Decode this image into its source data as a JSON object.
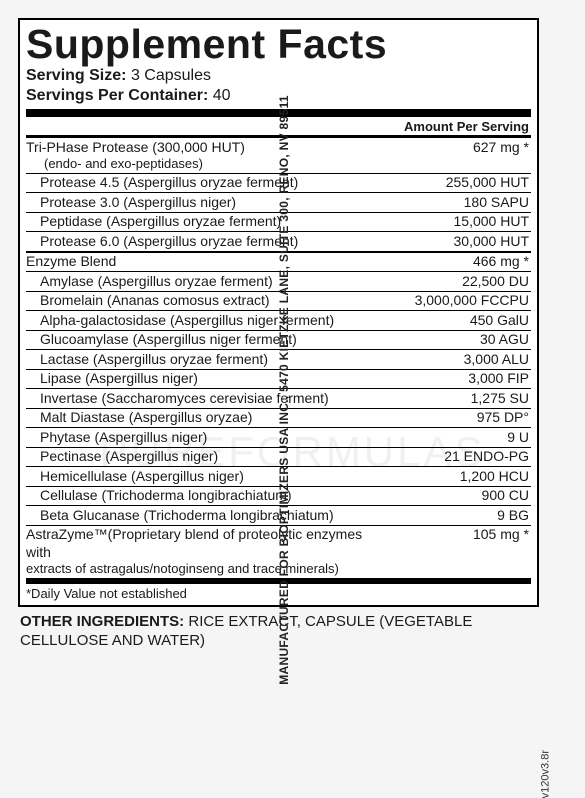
{
  "title": "Supplement Facts",
  "serving_size": {
    "label": "Serving Size:",
    "value": "3 Capsules"
  },
  "servings_per_container": {
    "label": "Servings Per Container:",
    "value": "40"
  },
  "header": {
    "amount": "Amount Per Serving"
  },
  "sections": [
    {
      "name": "Tri-PHase Protease (300,000 HUT)",
      "note": "(endo- and exo-peptidases)",
      "amount": "627 mg",
      "mark": "*",
      "items": [
        {
          "name": "Protease 4.5 (Aspergillus oryzae ferment)",
          "amount": "255,000 HUT"
        },
        {
          "name": "Protease 3.0 (Aspergillus niger)",
          "amount": "180 SAPU"
        },
        {
          "name": "Peptidase (Aspergillus oryzae ferment)",
          "amount": "15,000 HUT"
        },
        {
          "name": "Protease 6.0 (Aspergillus oryzae ferment)",
          "amount": "30,000 HUT"
        }
      ]
    },
    {
      "name": "Enzyme Blend",
      "amount": "466 mg",
      "mark": "*",
      "items": [
        {
          "name": "Amylase (Aspergillus oryzae ferment)",
          "amount": "22,500 DU"
        },
        {
          "name": "Bromelain (Ananas comosus extract)",
          "amount": "3,000,000 FCCPU"
        },
        {
          "name": "Alpha-galactosidase (Aspergillus niger ferment)",
          "amount": "450 GalU"
        },
        {
          "name": "Glucoamylase (Aspergillus niger ferment)",
          "amount": "30 AGU"
        },
        {
          "name": "Lactase (Aspergillus oryzae ferment)",
          "amount": "3,000 ALU"
        },
        {
          "name": "Lipase (Aspergillus niger)",
          "amount": "3,000 FIP"
        },
        {
          "name": "Invertase (Saccharomyces cerevisiae ferment)",
          "amount": "1,275 SU"
        },
        {
          "name": "Malt Diastase (Aspergillus oryzae)",
          "amount": "975 DP°"
        },
        {
          "name": "Phytase (Aspergillus niger)",
          "amount": "9 U"
        },
        {
          "name": "Pectinase (Aspergillus niger)",
          "amount": "21 ENDO-PG"
        },
        {
          "name": "Hemicellulase (Aspergillus niger)",
          "amount": "1,200 HCU"
        },
        {
          "name": "Cellulase (Trichoderma longibrachiatum)",
          "amount": "900 CU"
        },
        {
          "name": "Beta Glucanase (Trichoderma longibrachiatum)",
          "amount": "9 BG"
        }
      ]
    }
  ],
  "astra": {
    "line1": "AstraZyme™(Proprietary blend of proteolytic enzymes with",
    "amount": "105 mg",
    "mark": "*",
    "line2": "extracts of astragalus/notoginseng and trace minerals)"
  },
  "dv_note": "*Daily Value not established",
  "other": {
    "label": "OTHER INGREDIENTS:",
    "text": "RICE EXTRACT, CAPSULE (VEGETABLE CELLULOSE AND WATER)"
  },
  "side_text": "MANUFACTURED FOR BIOPTIMIZERS USA INC.,  5470 KIETZKE LANE, SUITE 300, RENO, NV 89511",
  "version": "v120v3.8r",
  "watermark": "PUREFORMULAS"
}
